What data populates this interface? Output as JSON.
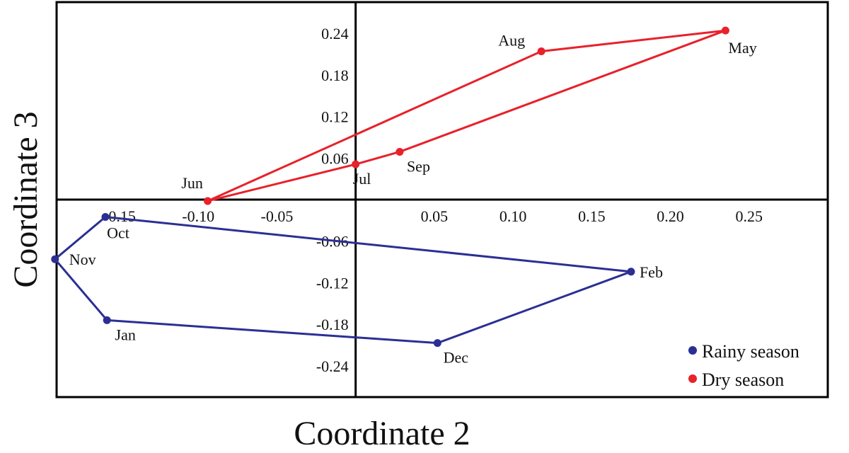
{
  "chart_data": {
    "type": "scatter",
    "xlabel": "Coordinate 2",
    "ylabel": "Coordinate 3",
    "xlim": [
      -0.19,
      0.3
    ],
    "ylim": [
      -0.285,
      0.285
    ],
    "x_ticks": [
      -0.15,
      -0.1,
      -0.05,
      0.05,
      0.1,
      0.15,
      0.2,
      0.25
    ],
    "x_tick_labels": [
      "-0.15",
      "-0.10",
      "-0.05",
      "0.05",
      "0.10",
      "0.15",
      "0.20",
      "0.25"
    ],
    "y_ticks": [
      0.24,
      0.18,
      0.12,
      0.06,
      -0.06,
      -0.12,
      -0.18,
      -0.24
    ],
    "y_tick_labels": [
      "0.24",
      "0.18",
      "0.12",
      "0.06",
      "-0.06",
      "-0.12",
      "-0.18",
      "-0.24"
    ],
    "grid": false,
    "legend_position": "bottom-right",
    "series": [
      {
        "name": "Rainy season",
        "color": "#2b2f94",
        "closed": true,
        "points": [
          {
            "label": "Oct",
            "x": -0.159,
            "y": -0.025
          },
          {
            "label": "Feb",
            "x": 0.175,
            "y": -0.104
          },
          {
            "label": "Dec",
            "x": 0.052,
            "y": -0.207
          },
          {
            "label": "Jan",
            "x": -0.158,
            "y": -0.174
          },
          {
            "label": "Nov",
            "x": -0.191,
            "y": -0.086
          }
        ]
      },
      {
        "name": "Dry season",
        "color": "#e8212a",
        "closed": true,
        "points": [
          {
            "label": "Jun",
            "x": -0.094,
            "y": -0.002
          },
          {
            "label": "Aug",
            "x": 0.118,
            "y": 0.214
          },
          {
            "label": "May",
            "x": 0.235,
            "y": 0.244
          },
          {
            "label": "Sep",
            "x": 0.028,
            "y": 0.069
          },
          {
            "label": "Jul",
            "x": 0.0,
            "y": 0.051
          }
        ]
      }
    ]
  }
}
